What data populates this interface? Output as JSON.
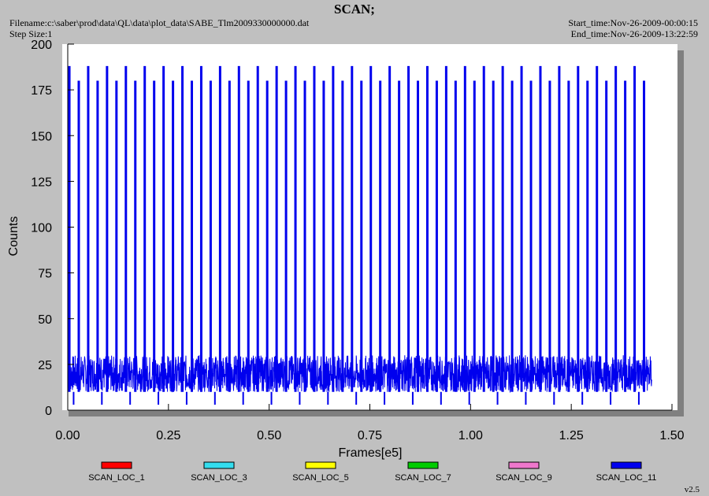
{
  "header": {
    "title": "SCAN;",
    "filename": "Filename:c:\\saber\\prod\\data\\QL\\data\\plot_data\\SABE_Tlm2009330000000.dat",
    "step_size": "Step Size:1",
    "start_time": "Start_time:Nov-26-2009-00:00:15",
    "end_time": "End_time:Nov-26-2009-13:22:59"
  },
  "version": "v2.5",
  "chart_data": {
    "type": "line",
    "title": "SCAN;",
    "xlabel": "Frames[e5]",
    "ylabel": "Counts",
    "xlim": [
      0,
      1.5
    ],
    "ylim": [
      0,
      200
    ],
    "x_ticks": [
      "0.00",
      "0.25",
      "0.50",
      "0.75",
      "1.00",
      "1.25",
      "1.50"
    ],
    "y_ticks": [
      "0",
      "25",
      "50",
      "75",
      "100",
      "125",
      "150",
      "175",
      "200"
    ],
    "grid": false,
    "legend_position": "bottom",
    "series": [
      {
        "name": "SCAN_LOC_1",
        "color": "#ff0000"
      },
      {
        "name": "SCAN_LOC_3",
        "color": "#33ddee"
      },
      {
        "name": "SCAN_LOC_5",
        "color": "#ffff00"
      },
      {
        "name": "SCAN_LOC_7",
        "color": "#00cc00"
      },
      {
        "name": "SCAN_LOC_9",
        "color": "#ee77cc"
      },
      {
        "name": "SCAN_LOC_11",
        "color": "#0000ee"
      }
    ],
    "dominant_series": "SCAN_LOC_11",
    "baseline_range": [
      10,
      30
    ],
    "spike_peak_values": [
      180,
      188
    ],
    "spike_dip_value": 3,
    "x_data_end": 1.45
  }
}
